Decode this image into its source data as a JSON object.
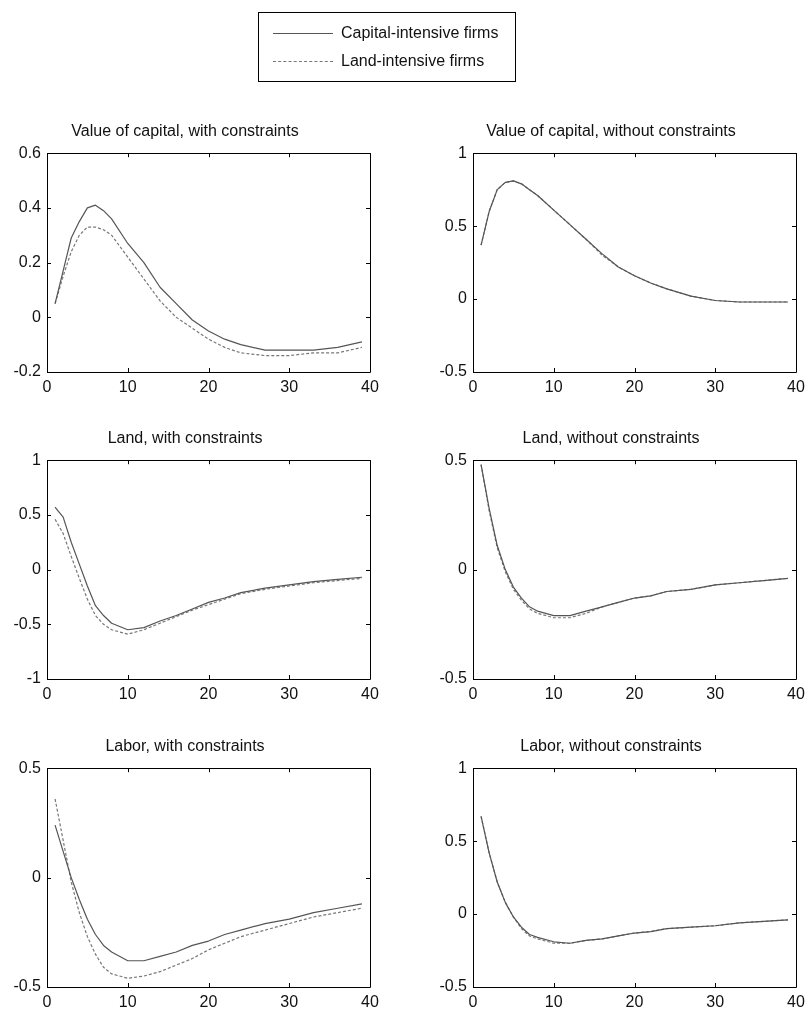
{
  "chart_data": [
    {
      "type": "line",
      "title": "Value of capital, with constraints",
      "legend": "top",
      "grid": false,
      "marker": "none",
      "xlim": [
        0,
        40
      ],
      "xticks": [
        0,
        10,
        20,
        30,
        40
      ],
      "ylim": [
        -0.2,
        0.6
      ],
      "yticks": [
        -0.2,
        0,
        0.2,
        0.4,
        0.6
      ],
      "x": [
        1,
        2,
        3,
        4,
        5,
        6,
        7,
        8,
        10,
        12,
        14,
        16,
        18,
        20,
        22,
        24,
        27,
        30,
        33,
        36,
        39
      ],
      "series": [
        {
          "name": "Capital-intensive firms",
          "color": "#555555",
          "line_style": "solid",
          "values": [
            0.05,
            0.17,
            0.29,
            0.35,
            0.4,
            0.41,
            0.39,
            0.36,
            0.27,
            0.2,
            0.11,
            0.05,
            -0.01,
            -0.05,
            -0.08,
            -0.1,
            -0.12,
            -0.12,
            -0.12,
            -0.11,
            -0.09
          ]
        },
        {
          "name": "Land-intensive firms",
          "color": "#777777",
          "line_style": "dashed",
          "values": [
            0.05,
            0.15,
            0.24,
            0.3,
            0.33,
            0.33,
            0.32,
            0.3,
            0.22,
            0.14,
            0.06,
            0.0,
            -0.04,
            -0.08,
            -0.11,
            -0.13,
            -0.14,
            -0.14,
            -0.13,
            -0.13,
            -0.11
          ]
        }
      ]
    },
    {
      "type": "line",
      "title": "Value of capital, without constraints",
      "grid": false,
      "marker": "none",
      "xlim": [
        0,
        40
      ],
      "xticks": [
        0,
        10,
        20,
        30,
        40
      ],
      "ylim": [
        -0.5,
        1
      ],
      "yticks": [
        -0.5,
        0,
        0.5,
        1
      ],
      "x": [
        1,
        2,
        3,
        4,
        5,
        6,
        7,
        8,
        10,
        12,
        14,
        16,
        18,
        20,
        22,
        24,
        27,
        30,
        33,
        36,
        39
      ],
      "series": [
        {
          "color": "#555555",
          "line_style": "solid",
          "values": [
            0.37,
            0.6,
            0.75,
            0.8,
            0.81,
            0.79,
            0.75,
            0.71,
            0.61,
            0.51,
            0.41,
            0.31,
            0.22,
            0.16,
            0.11,
            0.07,
            0.02,
            -0.01,
            -0.02,
            -0.02,
            -0.02
          ]
        },
        {
          "color": "#777777",
          "line_style": "dashed",
          "values": [
            0.37,
            0.6,
            0.75,
            0.8,
            0.81,
            0.79,
            0.75,
            0.71,
            0.61,
            0.51,
            0.41,
            0.3,
            0.22,
            0.16,
            0.11,
            0.07,
            0.02,
            -0.01,
            -0.02,
            -0.02,
            -0.02
          ]
        }
      ]
    },
    {
      "type": "line",
      "title": "Land, with constraints",
      "grid": false,
      "marker": "none",
      "xlim": [
        0,
        40
      ],
      "xticks": [
        0,
        10,
        20,
        30,
        40
      ],
      "ylim": [
        -1,
        1
      ],
      "yticks": [
        -1,
        -0.5,
        0,
        0.5,
        1
      ],
      "x": [
        1,
        2,
        3,
        4,
        5,
        6,
        7,
        8,
        10,
        12,
        14,
        16,
        18,
        20,
        22,
        24,
        27,
        30,
        33,
        36,
        39
      ],
      "series": [
        {
          "color": "#555555",
          "line_style": "solid",
          "values": [
            0.57,
            0.48,
            0.25,
            0.05,
            -0.15,
            -0.33,
            -0.42,
            -0.49,
            -0.55,
            -0.53,
            -0.47,
            -0.42,
            -0.36,
            -0.3,
            -0.26,
            -0.21,
            -0.17,
            -0.14,
            -0.11,
            -0.09,
            -0.07
          ]
        },
        {
          "color": "#777777",
          "line_style": "dashed",
          "values": [
            0.46,
            0.33,
            0.12,
            -0.08,
            -0.27,
            -0.42,
            -0.5,
            -0.55,
            -0.59,
            -0.55,
            -0.49,
            -0.43,
            -0.37,
            -0.32,
            -0.27,
            -0.22,
            -0.18,
            -0.15,
            -0.12,
            -0.1,
            -0.08
          ]
        }
      ]
    },
    {
      "type": "line",
      "title": "Land, without constraints",
      "grid": false,
      "marker": "none",
      "xlim": [
        0,
        40
      ],
      "xticks": [
        0,
        10,
        20,
        30,
        40
      ],
      "ylim": [
        -0.5,
        0.5
      ],
      "yticks": [
        -0.5,
        0,
        0.5
      ],
      "x": [
        1,
        2,
        3,
        4,
        5,
        6,
        7,
        8,
        10,
        12,
        14,
        16,
        18,
        20,
        22,
        24,
        27,
        30,
        33,
        36,
        39
      ],
      "series": [
        {
          "color": "#555555",
          "line_style": "solid",
          "values": [
            0.48,
            0.28,
            0.11,
            0.0,
            -0.08,
            -0.13,
            -0.17,
            -0.19,
            -0.21,
            -0.21,
            -0.19,
            -0.17,
            -0.15,
            -0.13,
            -0.12,
            -0.1,
            -0.09,
            -0.07,
            -0.06,
            -0.05,
            -0.04
          ]
        },
        {
          "color": "#777777",
          "line_style": "dashed",
          "values": [
            0.48,
            0.27,
            0.1,
            -0.01,
            -0.09,
            -0.14,
            -0.18,
            -0.2,
            -0.22,
            -0.22,
            -0.2,
            -0.17,
            -0.15,
            -0.13,
            -0.12,
            -0.1,
            -0.09,
            -0.07,
            -0.06,
            -0.05,
            -0.04
          ]
        }
      ]
    },
    {
      "type": "line",
      "title": "Labor, with constraints",
      "grid": false,
      "marker": "none",
      "xlim": [
        0,
        40
      ],
      "xticks": [
        0,
        10,
        20,
        30,
        40
      ],
      "ylim": [
        -0.5,
        0.5
      ],
      "yticks": [
        -0.5,
        0,
        0.5
      ],
      "x": [
        1,
        2,
        3,
        4,
        5,
        6,
        7,
        8,
        10,
        12,
        14,
        16,
        18,
        20,
        22,
        24,
        27,
        30,
        33,
        36,
        39
      ],
      "series": [
        {
          "color": "#555555",
          "line_style": "solid",
          "values": [
            0.24,
            0.12,
            0.0,
            -0.1,
            -0.19,
            -0.26,
            -0.31,
            -0.34,
            -0.38,
            -0.38,
            -0.36,
            -0.34,
            -0.31,
            -0.29,
            -0.26,
            -0.24,
            -0.21,
            -0.19,
            -0.16,
            -0.14,
            -0.12
          ]
        },
        {
          "color": "#777777",
          "line_style": "dashed",
          "values": [
            0.36,
            0.17,
            -0.02,
            -0.16,
            -0.27,
            -0.35,
            -0.41,
            -0.44,
            -0.46,
            -0.45,
            -0.43,
            -0.4,
            -0.37,
            -0.33,
            -0.3,
            -0.27,
            -0.24,
            -0.21,
            -0.18,
            -0.16,
            -0.14
          ]
        }
      ]
    },
    {
      "type": "line",
      "title": "Labor, without constraints",
      "grid": false,
      "marker": "none",
      "xlim": [
        0,
        40
      ],
      "xticks": [
        0,
        10,
        20,
        30,
        40
      ],
      "ylim": [
        -0.5,
        1
      ],
      "yticks": [
        -0.5,
        0,
        0.5,
        1
      ],
      "x": [
        1,
        2,
        3,
        4,
        5,
        6,
        7,
        8,
        10,
        12,
        14,
        16,
        18,
        20,
        22,
        24,
        27,
        30,
        33,
        36,
        39
      ],
      "series": [
        {
          "color": "#555555",
          "line_style": "solid",
          "values": [
            0.67,
            0.42,
            0.22,
            0.08,
            -0.02,
            -0.09,
            -0.14,
            -0.16,
            -0.19,
            -0.2,
            -0.18,
            -0.17,
            -0.15,
            -0.13,
            -0.12,
            -0.1,
            -0.09,
            -0.08,
            -0.06,
            -0.05,
            -0.04
          ]
        },
        {
          "color": "#777777",
          "line_style": "dashed",
          "values": [
            0.67,
            0.42,
            0.22,
            0.08,
            -0.02,
            -0.1,
            -0.15,
            -0.17,
            -0.2,
            -0.2,
            -0.18,
            -0.17,
            -0.15,
            -0.13,
            -0.12,
            -0.1,
            -0.09,
            -0.08,
            -0.06,
            -0.05,
            -0.04
          ]
        }
      ]
    }
  ]
}
